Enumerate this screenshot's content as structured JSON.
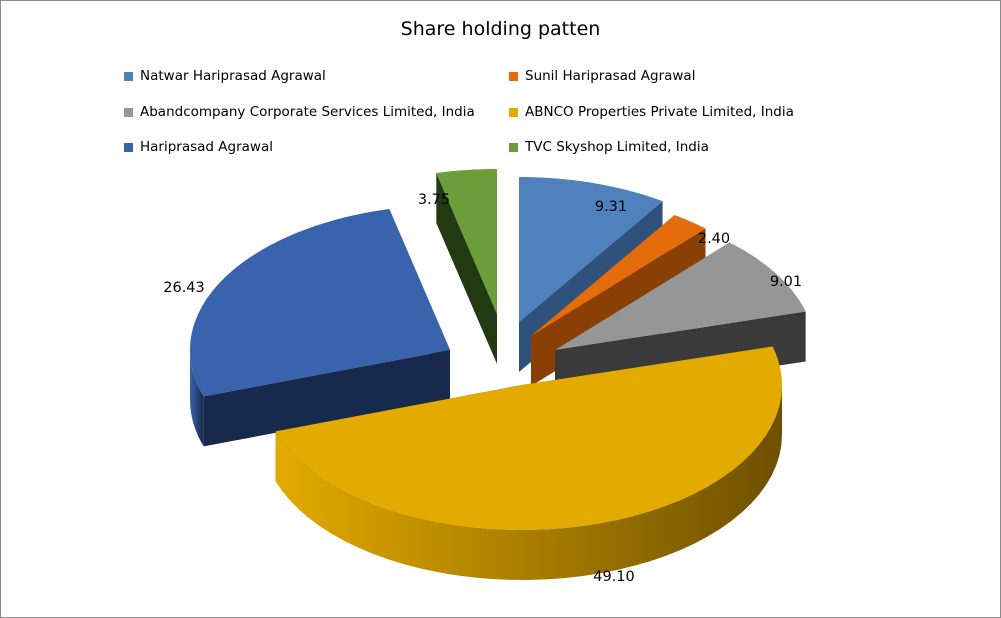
{
  "chart_data": {
    "type": "pie",
    "title": "Share holding patten",
    "legend_position": "top",
    "slices": [
      {
        "name": "Natwar Hariprasad Agrawal",
        "value": 9.31,
        "label": "9.31",
        "color": "#4f81bd",
        "dark": "#2f527c"
      },
      {
        "name": "Sunil Hariprasad Agrawal",
        "value": 2.4,
        "label": "2.40",
        "color": "#e46c0a",
        "dark": "#8a3f05"
      },
      {
        "name": "Abandcompany Corporate Services Limited, India",
        "value": 9.01,
        "label": "9.01",
        "color": "#969696",
        "dark": "#3a3a3a"
      },
      {
        "name": "ABNCO Properties Private Limited, India",
        "value": 49.1,
        "label": "49.10",
        "color": "#e3aa00",
        "dark": "#6e5000"
      },
      {
        "name": "Hariprasad Agrawal",
        "value": 26.43,
        "label": "26.43",
        "color": "#3a63ad",
        "dark": "#172a4d"
      },
      {
        "name": "TVC Skyshop Limited, India",
        "value": 3.75,
        "label": "3.75",
        "color": "#6a9e3a",
        "dark": "#223a12"
      }
    ]
  }
}
